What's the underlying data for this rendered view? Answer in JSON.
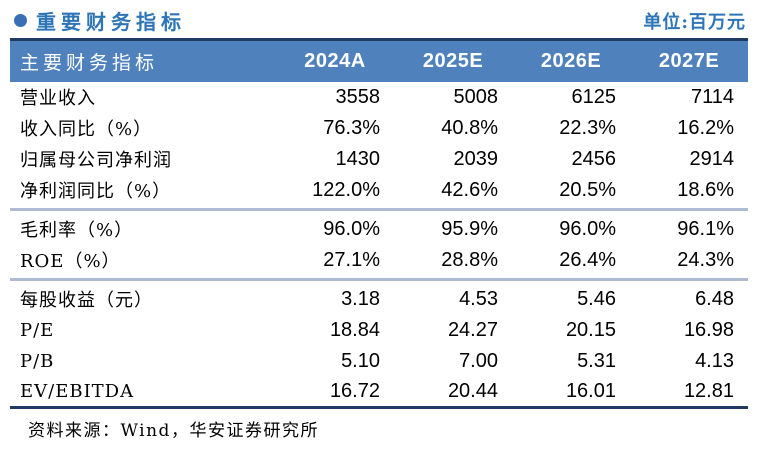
{
  "page": {
    "title": "重要财务指标",
    "unit_label": "单位:百万元",
    "source": "资料来源：Wind，华安证券研究所"
  },
  "colors": {
    "accent_blue": "#2e75b6",
    "header_bg": "#4f81bd",
    "navy_border": "#1f3a63",
    "divider": "#aebbd3",
    "bullet": "#3b6fb5"
  },
  "icons": {
    "bullet": "circle-bullet-icon"
  },
  "table": {
    "header": {
      "label": "主要财务指标",
      "columns": [
        "2024A",
        "2025E",
        "2026E",
        "2027E"
      ]
    },
    "rows": [
      {
        "label": "营业收入",
        "values": [
          "3558",
          "5008",
          "6125",
          "7114"
        ]
      },
      {
        "label": "收入同比（%）",
        "values": [
          "76.3%",
          "40.8%",
          "22.3%",
          "16.2%"
        ]
      },
      {
        "label": "归属母公司净利润",
        "values": [
          "1430",
          "2039",
          "2456",
          "2914"
        ]
      },
      {
        "label": "净利润同比（%）",
        "values": [
          "122.0%",
          "42.6%",
          "20.5%",
          "18.6%"
        ]
      },
      {
        "label": "毛利率（%）",
        "values": [
          "96.0%",
          "95.9%",
          "96.0%",
          "96.1%"
        ],
        "divider_before": true
      },
      {
        "label": "ROE（%）",
        "values": [
          "27.1%",
          "28.8%",
          "26.4%",
          "24.3%"
        ]
      },
      {
        "label": "每股收益（元）",
        "values": [
          "3.18",
          "4.53",
          "5.46",
          "6.48"
        ],
        "divider_before": true
      },
      {
        "label": "P/E",
        "values": [
          "18.84",
          "24.27",
          "20.15",
          "16.98"
        ]
      },
      {
        "label": "P/B",
        "values": [
          "5.10",
          "7.00",
          "5.31",
          "4.13"
        ]
      },
      {
        "label": "EV/EBITDA",
        "values": [
          "16.72",
          "20.44",
          "16.01",
          "12.81"
        ]
      }
    ]
  },
  "chart_data": {
    "type": "table",
    "title": "重要财务指标",
    "unit": "百万元",
    "columns": [
      "2024A",
      "2025E",
      "2026E",
      "2027E"
    ],
    "series": [
      {
        "name": "营业收入",
        "values": [
          3558,
          5008,
          6125,
          7114
        ]
      },
      {
        "name": "收入同比（%）",
        "values": [
          76.3,
          40.8,
          22.3,
          16.2
        ]
      },
      {
        "name": "归属母公司净利润",
        "values": [
          1430,
          2039,
          2456,
          2914
        ]
      },
      {
        "name": "净利润同比（%）",
        "values": [
          122.0,
          42.6,
          20.5,
          18.6
        ]
      },
      {
        "name": "毛利率（%）",
        "values": [
          96.0,
          95.9,
          96.0,
          96.1
        ]
      },
      {
        "name": "ROE（%）",
        "values": [
          27.1,
          28.8,
          26.4,
          24.3
        ]
      },
      {
        "name": "每股收益（元）",
        "values": [
          3.18,
          4.53,
          5.46,
          6.48
        ]
      },
      {
        "name": "P/E",
        "values": [
          18.84,
          24.27,
          20.15,
          16.98
        ]
      },
      {
        "name": "P/B",
        "values": [
          5.1,
          7.0,
          5.31,
          4.13
        ]
      },
      {
        "name": "EV/EBITDA",
        "values": [
          16.72,
          20.44,
          16.01,
          12.81
        ]
      }
    ],
    "source_note": "资料来源：Wind，华安证券研究所"
  }
}
